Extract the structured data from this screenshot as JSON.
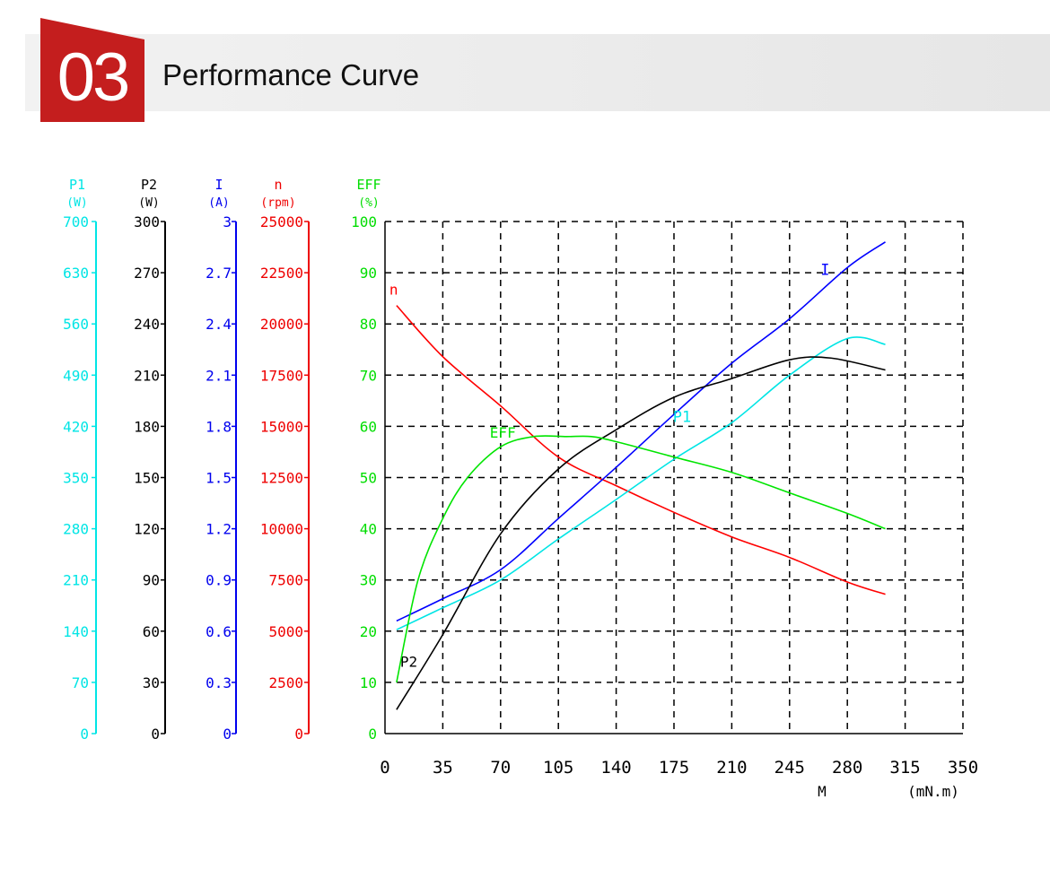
{
  "header": {
    "section_number": "03",
    "title": "Performance Curve",
    "badge_color": "#c41e1e"
  },
  "chart_data": {
    "type": "line",
    "x_axis": {
      "name": "M",
      "unit": "(mN.m)",
      "range": [
        0,
        350
      ],
      "ticks": [
        0,
        35,
        70,
        105,
        140,
        175,
        210,
        245,
        280,
        315,
        350
      ]
    },
    "grid": true,
    "y_axes": [
      {
        "id": "P1",
        "label": "P1",
        "unit": "(W)",
        "color": "#00e5e5",
        "range": [
          0,
          700
        ],
        "ticks": [
          "0",
          "70",
          "140",
          "210",
          "280",
          "350",
          "420",
          "490",
          "560",
          "630",
          "700"
        ]
      },
      {
        "id": "P2",
        "label": "P2",
        "unit": "(W)",
        "color": "#000000",
        "range": [
          0,
          300
        ],
        "ticks": [
          "0",
          "30",
          "60",
          "90",
          "120",
          "150",
          "180",
          "210",
          "240",
          "270",
          "300"
        ]
      },
      {
        "id": "I",
        "label": "I",
        "unit": "(A)",
        "color": "#0000ee",
        "range": [
          0,
          3
        ],
        "ticks": [
          "0",
          "0.3",
          "0.6",
          "0.9",
          "1.2",
          "1.5",
          "1.8",
          "2.1",
          "2.4",
          "2.7",
          "3"
        ]
      },
      {
        "id": "n",
        "label": "n",
        "unit": "(rpm)",
        "color": "#ee0000",
        "range": [
          0,
          25000
        ],
        "ticks": [
          "0",
          "2500",
          "5000",
          "7500",
          "10000",
          "12500",
          "15000",
          "17500",
          "20000",
          "22500",
          "25000"
        ]
      },
      {
        "id": "EFF",
        "label": "EFF",
        "unit": "(%)",
        "color": "#00dd00",
        "range": [
          0,
          100
        ],
        "ticks": [
          "0",
          "10",
          "20",
          "30",
          "40",
          "50",
          "60",
          "70",
          "80",
          "90",
          "100"
        ]
      }
    ],
    "series": [
      {
        "name": "n",
        "axis": "n",
        "color": "#ff0000",
        "x": [
          7,
          35,
          70,
          105,
          140,
          175,
          210,
          245,
          280,
          303
        ],
        "y": [
          20900,
          18400,
          16000,
          13500,
          12100,
          10800,
          9600,
          8600,
          7400,
          6800
        ]
      },
      {
        "name": "I",
        "axis": "I",
        "color": "#0000ff",
        "x": [
          7,
          35,
          70,
          105,
          140,
          175,
          210,
          245,
          280,
          303
        ],
        "y": [
          0.66,
          0.79,
          0.96,
          1.26,
          1.56,
          1.87,
          2.17,
          2.43,
          2.73,
          2.88
        ]
      },
      {
        "name": "P1",
        "axis": "P1",
        "color": "#00e5e5",
        "x": [
          7,
          35,
          70,
          105,
          140,
          175,
          210,
          245,
          280,
          303
        ],
        "y": [
          142,
          172,
          210,
          266,
          320,
          375,
          425,
          490,
          540,
          532
        ]
      },
      {
        "name": "P2",
        "axis": "P2",
        "color": "#000000",
        "x": [
          7,
          35,
          70,
          105,
          140,
          175,
          210,
          245,
          270,
          303
        ],
        "y": [
          14,
          58,
          117,
          155,
          178,
          197,
          208,
          219,
          220,
          213
        ]
      },
      {
        "name": "EFF",
        "axis": "EFF",
        "color": "#00e500",
        "x": [
          7,
          20,
          35,
          50,
          70,
          90,
          110,
          125,
          140,
          175,
          210,
          245,
          280,
          303
        ],
        "y": [
          10,
          30,
          42,
          50,
          56,
          58,
          58,
          58,
          57,
          54,
          51,
          47,
          43,
          40
        ]
      }
    ]
  }
}
